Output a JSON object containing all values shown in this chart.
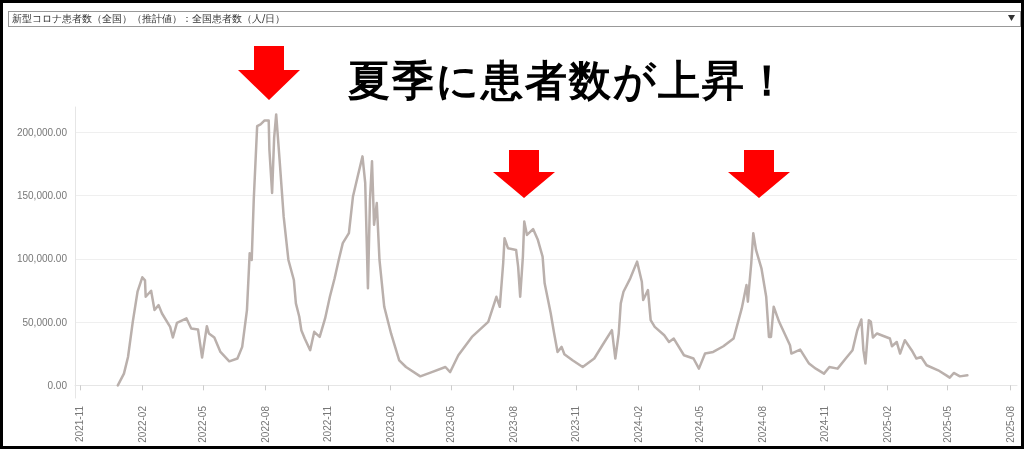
{
  "chart_data": {
    "type": "line",
    "title": "夏季に患者数が上昇！",
    "subtitle": "新型コロナ患者数（全国）（推計値）：全国患者数（人/日）",
    "x": [
      "2021-12-27",
      "2022-01-05",
      "2022-01-11",
      "2022-01-18",
      "2022-01-25",
      "2022-02-01",
      "2022-02-05",
      "2022-02-06",
      "2022-02-14",
      "2022-02-19",
      "2022-02-25",
      "2022-03-02",
      "2022-03-14",
      "2022-03-18",
      "2022-03-24",
      "2022-04-07",
      "2022-04-14",
      "2022-04-24",
      "2022-04-30",
      "2022-05-07",
      "2022-05-10",
      "2022-05-18",
      "2022-05-27",
      "2022-06-09",
      "2022-06-21",
      "2022-06-28",
      "2022-07-05",
      "2022-07-09",
      "2022-07-12",
      "2022-07-15",
      "2022-07-20",
      "2022-07-25",
      "2022-07-31",
      "2022-08-06",
      "2022-08-07",
      "2022-08-11",
      "2022-08-14",
      "2022-08-17",
      "2022-08-22",
      "2022-08-28",
      "2022-09-04",
      "2022-09-12",
      "2022-09-15",
      "2022-09-20",
      "2022-09-23",
      "2022-09-28",
      "2022-10-06",
      "2022-10-12",
      "2022-10-20",
      "2022-10-28",
      "2022-11-04",
      "2022-11-11",
      "2022-11-17",
      "2022-11-23",
      "2022-12-02",
      "2022-12-08",
      "2022-12-15",
      "2022-12-22",
      "2022-12-26",
      "2022-12-30",
      "2023-01-02",
      "2023-01-05",
      "2023-01-08",
      "2023-01-12",
      "2023-01-16",
      "2023-01-23",
      "2023-02-02",
      "2023-02-14",
      "2023-02-24",
      "2023-03-17",
      "2023-04-03",
      "2023-04-23",
      "2023-04-30",
      "2023-05-12",
      "2023-06-01",
      "2023-06-25",
      "2023-07-07",
      "2023-07-12",
      "2023-07-17",
      "2023-07-19",
      "2023-07-24",
      "2023-08-05",
      "2023-08-08",
      "2023-08-11",
      "2023-08-15",
      "2023-08-17",
      "2023-08-21",
      "2023-08-30",
      "2023-09-06",
      "2023-09-13",
      "2023-09-16",
      "2023-09-21",
      "2023-09-25",
      "2023-09-30",
      "2023-10-05",
      "2023-10-11",
      "2023-10-15",
      "2023-10-27",
      "2023-11-11",
      "2023-11-28",
      "2023-12-10",
      "2023-12-24",
      "2023-12-29",
      "2024-01-03",
      "2024-01-06",
      "2024-01-10",
      "2024-01-20",
      "2024-01-30",
      "2024-02-06",
      "2024-02-08",
      "2024-02-15",
      "2024-02-19",
      "2024-02-25",
      "2024-03-10",
      "2024-03-17",
      "2024-03-24",
      "2024-04-08",
      "2024-04-22",
      "2024-04-30",
      "2024-05-09",
      "2024-05-21",
      "2024-06-05",
      "2024-06-20",
      "2024-07-02",
      "2024-07-09",
      "2024-07-11",
      "2024-07-16",
      "2024-07-19",
      "2024-07-23",
      "2024-07-31",
      "2024-08-07",
      "2024-08-11",
      "2024-08-14",
      "2024-08-18",
      "2024-08-26",
      "2024-09-03",
      "2024-09-11",
      "2024-09-13",
      "2024-09-26",
      "2024-10-09",
      "2024-10-19",
      "2024-10-31",
      "2024-11-08",
      "2024-11-20",
      "2024-12-02",
      "2024-12-12",
      "2024-12-19",
      "2024-12-25",
      "2024-12-28",
      "2024-12-31",
      "2025-01-05",
      "2025-01-08",
      "2025-01-11",
      "2025-01-17",
      "2025-02-05",
      "2025-02-08",
      "2025-02-15",
      "2025-02-20",
      "2025-02-27",
      "2025-03-09",
      "2025-03-16",
      "2025-03-23",
      "2025-03-31",
      "2025-04-17",
      "2025-04-29",
      "2025-05-04",
      "2025-05-10",
      "2025-05-19",
      "2025-05-30"
    ],
    "series": [
      {
        "color": "#bab0ac",
        "values": [
          0,
          9300,
          22400,
          50200,
          74000,
          85400,
          83000,
          70000,
          74800,
          59500,
          63400,
          56800,
          46200,
          37800,
          49400,
          52900,
          45000,
          44200,
          22000,
          46800,
          41000,
          37800,
          26400,
          19000,
          21200,
          30400,
          59500,
          104400,
          99100,
          146700,
          204800,
          206200,
          209400,
          209400,
          186400,
          152000,
          195600,
          214100,
          178400,
          133500,
          99100,
          83300,
          64800,
          54200,
          43600,
          37000,
          27800,
          42300,
          38300,
          52900,
          70000,
          84600,
          99100,
          112400,
          120300,
          149300,
          165200,
          181000,
          160000,
          76700,
          146700,
          177100,
          126900,
          144100,
          99100,
          62100,
          41000,
          19800,
          14500,
          7100,
          10500,
          14500,
          10500,
          23800,
          38300,
          50200,
          70000,
          62100,
          96500,
          116300,
          108400,
          107000,
          93800,
          70000,
          101700,
          129500,
          118900,
          123500,
          115000,
          101700,
          80600,
          67400,
          56800,
          41000,
          26400,
          30400,
          24600,
          19800,
          14500,
          21200,
          31700,
          43600,
          21200,
          41000,
          64800,
          74000,
          84600,
          97800,
          81900,
          67400,
          75300,
          51500,
          46200,
          39600,
          34300,
          37000,
          23800,
          21200,
          13200,
          25100,
          26400,
          30900,
          37000,
          60800,
          79300,
          66100,
          96500,
          120300,
          107000,
          92500,
          70000,
          38300,
          38300,
          62100,
          50200,
          41000,
          31700,
          25100,
          28300,
          17200,
          13200,
          9300,
          14500,
          13200,
          21200,
          27800,
          43600,
          52100,
          27800,
          17200,
          51500,
          50200,
          37800,
          41000,
          37000,
          30900,
          34300,
          25100,
          35700,
          27800,
          21200,
          22400,
          15900,
          11900,
          7900,
          6100,
          9800,
          7100,
          7900
        ]
      }
    ],
    "xlim": [
      "2021-10-25",
      "2025-08-11"
    ],
    "xticks": [
      "2021-11",
      "2022-02",
      "2022-05",
      "2022-08",
      "2022-11",
      "2023-02",
      "2023-05",
      "2023-08",
      "2023-11",
      "2024-02",
      "2024-05",
      "2024-08",
      "2024-11",
      "2025-02",
      "2025-05",
      "2025-08"
    ],
    "ylim": [
      -10000,
      220000
    ],
    "yticks": [
      {
        "value": 0,
        "label": "0.00"
      },
      {
        "value": 50000,
        "label": "50,000.00"
      },
      {
        "value": 100000,
        "label": "100,000.00"
      },
      {
        "value": 150000,
        "label": "150,000.00"
      },
      {
        "value": 200000,
        "label": "200,000.00"
      }
    ],
    "grid": "y",
    "marker": "none",
    "line_style": "solid"
  }
}
